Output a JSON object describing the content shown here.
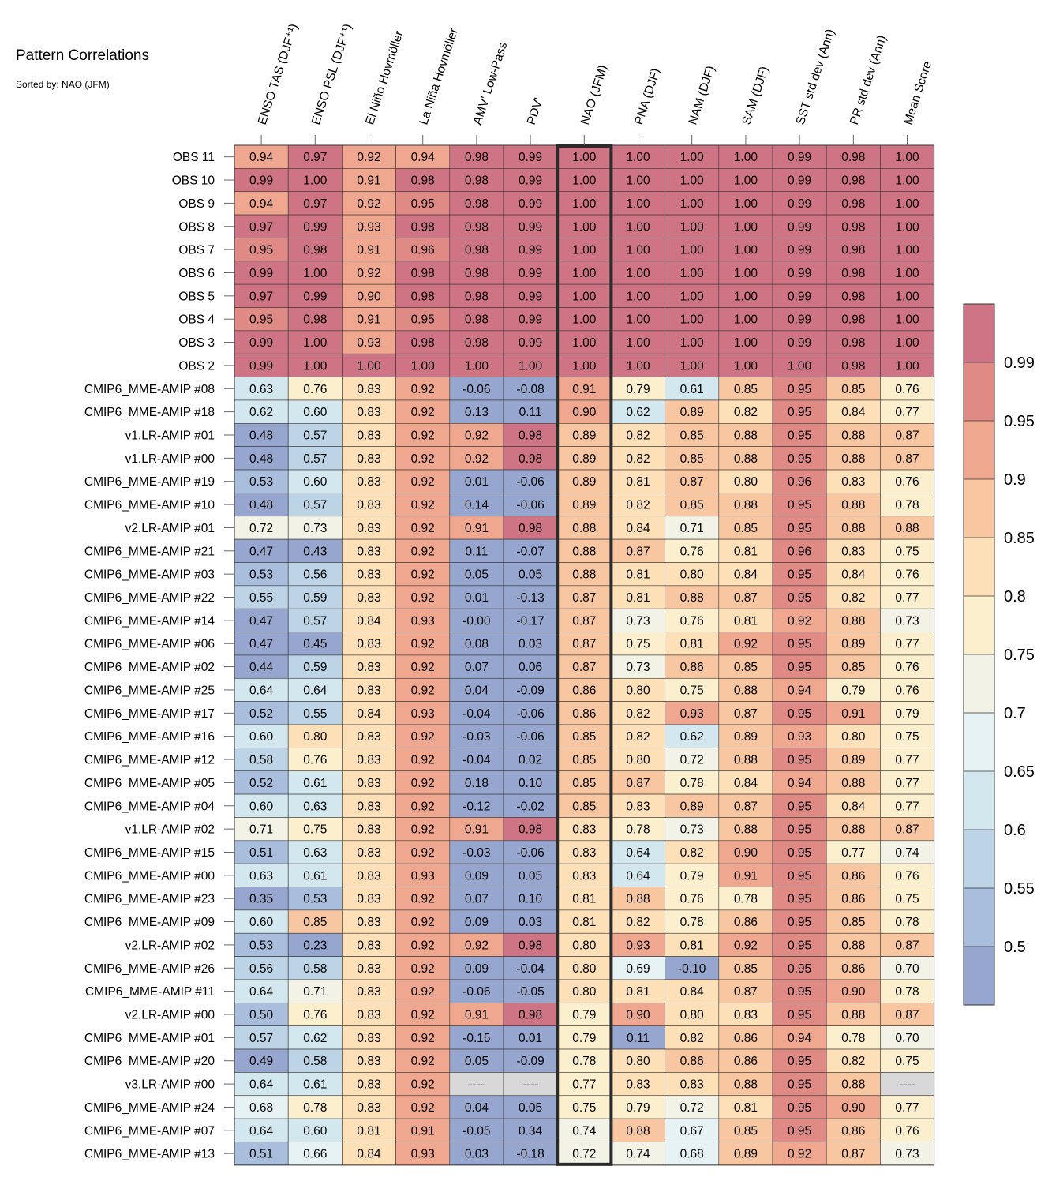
{
  "chart_data": {
    "type": "heatmap",
    "title": "Pattern Correlations",
    "subtitle": "Sorted by: NAO (JFM)",
    "highlight_column": "NAO (JFM)",
    "columns": [
      "ENSO TAS (DJF⁺¹)",
      "ENSO PSL (DJF⁺¹)",
      "El Niño Hovmöller",
      "La Niña Hovmöller",
      "AMV' Low-Pass",
      "PDV'",
      "NAO (JFM)",
      "PNA (DJF)",
      "NAM (DJF)",
      "SAM (DJF)",
      "SST std dev (Ann)",
      "PR std dev (Ann)",
      "Mean Score"
    ],
    "rows": [
      "OBS 11",
      "OBS 10",
      "OBS 9",
      "OBS 8",
      "OBS 7",
      "OBS 6",
      "OBS 5",
      "OBS 4",
      "OBS 3",
      "OBS 2",
      "CMIP6_MME-AMIP  #08",
      "CMIP6_MME-AMIP  #18",
      "v1.LR-AMIP  #01",
      "v1.LR-AMIP  #00",
      "CMIP6_MME-AMIP  #19",
      "CMIP6_MME-AMIP  #10",
      "v2.LR-AMIP  #01",
      "CMIP6_MME-AMIP  #21",
      "CMIP6_MME-AMIP  #03",
      "CMIP6_MME-AMIP  #22",
      "CMIP6_MME-AMIP  #14",
      "CMIP6_MME-AMIP  #06",
      "CMIP6_MME-AMIP  #02",
      "CMIP6_MME-AMIP  #25",
      "CMIP6_MME-AMIP  #17",
      "CMIP6_MME-AMIP  #16",
      "CMIP6_MME-AMIP  #12",
      "CMIP6_MME-AMIP  #05",
      "CMIP6_MME-AMIP  #04",
      "v1.LR-AMIP  #02",
      "CMIP6_MME-AMIP  #15",
      "CMIP6_MME-AMIP  #00",
      "CMIP6_MME-AMIP  #23",
      "CMIP6_MME-AMIP  #09",
      "v2.LR-AMIP  #02",
      "CMIP6_MME-AMIP  #26",
      "CMIP6_MME-AMIP  #11",
      "v2.LR-AMIP  #00",
      "CMIP6_MME-AMIP  #01",
      "CMIP6_MME-AMIP  #20",
      "v3.LR-AMIP  #00",
      "CMIP6_MME-AMIP  #24",
      "CMIP6_MME-AMIP  #07",
      "CMIP6_MME-AMIP  #13"
    ],
    "values": [
      [
        "0.94",
        "0.97",
        "0.92",
        "0.94",
        "0.98",
        "0.99",
        "1.00",
        "1.00",
        "1.00",
        "1.00",
        "0.99",
        "0.98",
        "1.00"
      ],
      [
        "0.99",
        "1.00",
        "0.91",
        "0.98",
        "0.98",
        "0.99",
        "1.00",
        "1.00",
        "1.00",
        "1.00",
        "0.99",
        "0.98",
        "1.00"
      ],
      [
        "0.94",
        "0.97",
        "0.92",
        "0.95",
        "0.98",
        "0.99",
        "1.00",
        "1.00",
        "1.00",
        "1.00",
        "0.99",
        "0.98",
        "1.00"
      ],
      [
        "0.97",
        "0.99",
        "0.93",
        "0.98",
        "0.98",
        "0.99",
        "1.00",
        "1.00",
        "1.00",
        "1.00",
        "0.99",
        "0.98",
        "1.00"
      ],
      [
        "0.95",
        "0.98",
        "0.91",
        "0.96",
        "0.98",
        "0.99",
        "1.00",
        "1.00",
        "1.00",
        "1.00",
        "0.99",
        "0.98",
        "1.00"
      ],
      [
        "0.99",
        "1.00",
        "0.92",
        "0.98",
        "0.98",
        "0.99",
        "1.00",
        "1.00",
        "1.00",
        "1.00",
        "0.99",
        "0.98",
        "1.00"
      ],
      [
        "0.97",
        "0.99",
        "0.90",
        "0.98",
        "0.98",
        "0.99",
        "1.00",
        "1.00",
        "1.00",
        "1.00",
        "0.99",
        "0.98",
        "1.00"
      ],
      [
        "0.95",
        "0.98",
        "0.91",
        "0.95",
        "0.98",
        "0.99",
        "1.00",
        "1.00",
        "1.00",
        "1.00",
        "0.99",
        "0.98",
        "1.00"
      ],
      [
        "0.99",
        "1.00",
        "0.93",
        "0.98",
        "0.98",
        "0.99",
        "1.00",
        "1.00",
        "1.00",
        "1.00",
        "0.99",
        "0.98",
        "1.00"
      ],
      [
        "0.99",
        "1.00",
        "1.00",
        "1.00",
        "1.00",
        "1.00",
        "1.00",
        "1.00",
        "1.00",
        "1.00",
        "1.00",
        "0.98",
        "1.00"
      ],
      [
        "0.63",
        "0.76",
        "0.83",
        "0.92",
        "-0.06",
        "-0.08",
        "0.91",
        "0.79",
        "0.61",
        "0.85",
        "0.95",
        "0.85",
        "0.76"
      ],
      [
        "0.62",
        "0.60",
        "0.83",
        "0.92",
        "0.13",
        "0.11",
        "0.90",
        "0.62",
        "0.89",
        "0.82",
        "0.95",
        "0.84",
        "0.77"
      ],
      [
        "0.48",
        "0.57",
        "0.83",
        "0.92",
        "0.92",
        "0.98",
        "0.89",
        "0.82",
        "0.85",
        "0.88",
        "0.95",
        "0.88",
        "0.87"
      ],
      [
        "0.48",
        "0.57",
        "0.83",
        "0.92",
        "0.92",
        "0.98",
        "0.89",
        "0.82",
        "0.85",
        "0.88",
        "0.95",
        "0.88",
        "0.87"
      ],
      [
        "0.53",
        "0.60",
        "0.83",
        "0.92",
        "0.01",
        "-0.06",
        "0.89",
        "0.81",
        "0.87",
        "0.80",
        "0.96",
        "0.83",
        "0.76"
      ],
      [
        "0.48",
        "0.57",
        "0.83",
        "0.92",
        "0.14",
        "-0.06",
        "0.89",
        "0.82",
        "0.85",
        "0.88",
        "0.95",
        "0.88",
        "0.78"
      ],
      [
        "0.72",
        "0.73",
        "0.83",
        "0.92",
        "0.91",
        "0.98",
        "0.88",
        "0.84",
        "0.71",
        "0.85",
        "0.95",
        "0.88",
        "0.88"
      ],
      [
        "0.47",
        "0.43",
        "0.83",
        "0.92",
        "0.11",
        "-0.07",
        "0.88",
        "0.87",
        "0.76",
        "0.81",
        "0.96",
        "0.83",
        "0.75"
      ],
      [
        "0.53",
        "0.56",
        "0.83",
        "0.92",
        "0.05",
        "0.05",
        "0.88",
        "0.81",
        "0.80",
        "0.84",
        "0.95",
        "0.84",
        "0.76"
      ],
      [
        "0.55",
        "0.59",
        "0.83",
        "0.92",
        "0.01",
        "-0.13",
        "0.87",
        "0.81",
        "0.88",
        "0.87",
        "0.95",
        "0.82",
        "0.77"
      ],
      [
        "0.47",
        "0.57",
        "0.84",
        "0.93",
        "-0.00",
        "-0.17",
        "0.87",
        "0.73",
        "0.76",
        "0.81",
        "0.92",
        "0.88",
        "0.73"
      ],
      [
        "0.47",
        "0.45",
        "0.83",
        "0.92",
        "0.08",
        "0.03",
        "0.87",
        "0.75",
        "0.81",
        "0.92",
        "0.95",
        "0.89",
        "0.77"
      ],
      [
        "0.44",
        "0.59",
        "0.83",
        "0.92",
        "0.07",
        "0.06",
        "0.87",
        "0.73",
        "0.86",
        "0.85",
        "0.95",
        "0.85",
        "0.76"
      ],
      [
        "0.64",
        "0.64",
        "0.83",
        "0.92",
        "0.04",
        "-0.09",
        "0.86",
        "0.80",
        "0.75",
        "0.88",
        "0.94",
        "0.79",
        "0.76"
      ],
      [
        "0.52",
        "0.55",
        "0.84",
        "0.93",
        "-0.04",
        "-0.06",
        "0.86",
        "0.82",
        "0.93",
        "0.87",
        "0.95",
        "0.91",
        "0.79"
      ],
      [
        "0.60",
        "0.80",
        "0.83",
        "0.92",
        "-0.03",
        "-0.06",
        "0.85",
        "0.82",
        "0.62",
        "0.89",
        "0.93",
        "0.80",
        "0.75"
      ],
      [
        "0.58",
        "0.76",
        "0.83",
        "0.92",
        "-0.04",
        "0.02",
        "0.85",
        "0.80",
        "0.72",
        "0.88",
        "0.95",
        "0.89",
        "0.77"
      ],
      [
        "0.52",
        "0.61",
        "0.83",
        "0.92",
        "0.18",
        "0.10",
        "0.85",
        "0.87",
        "0.78",
        "0.84",
        "0.94",
        "0.88",
        "0.77"
      ],
      [
        "0.60",
        "0.63",
        "0.83",
        "0.92",
        "-0.12",
        "-0.02",
        "0.85",
        "0.83",
        "0.89",
        "0.87",
        "0.95",
        "0.84",
        "0.77"
      ],
      [
        "0.71",
        "0.75",
        "0.83",
        "0.92",
        "0.91",
        "0.98",
        "0.83",
        "0.78",
        "0.73",
        "0.88",
        "0.95",
        "0.88",
        "0.87"
      ],
      [
        "0.51",
        "0.63",
        "0.83",
        "0.92",
        "-0.03",
        "-0.06",
        "0.83",
        "0.64",
        "0.82",
        "0.90",
        "0.95",
        "0.77",
        "0.74"
      ],
      [
        "0.63",
        "0.61",
        "0.83",
        "0.93",
        "0.09",
        "0.05",
        "0.83",
        "0.64",
        "0.79",
        "0.91",
        "0.95",
        "0.86",
        "0.76"
      ],
      [
        "0.35",
        "0.53",
        "0.83",
        "0.92",
        "0.07",
        "0.10",
        "0.81",
        "0.88",
        "0.76",
        "0.78",
        "0.95",
        "0.86",
        "0.75"
      ],
      [
        "0.60",
        "0.85",
        "0.83",
        "0.92",
        "0.09",
        "0.03",
        "0.81",
        "0.82",
        "0.78",
        "0.86",
        "0.95",
        "0.85",
        "0.78"
      ],
      [
        "0.53",
        "0.23",
        "0.83",
        "0.92",
        "0.92",
        "0.98",
        "0.80",
        "0.93",
        "0.81",
        "0.92",
        "0.95",
        "0.88",
        "0.87"
      ],
      [
        "0.56",
        "0.58",
        "0.83",
        "0.92",
        "0.09",
        "-0.04",
        "0.80",
        "0.69",
        "-0.10",
        "0.85",
        "0.95",
        "0.86",
        "0.70"
      ],
      [
        "0.64",
        "0.71",
        "0.83",
        "0.92",
        "-0.06",
        "-0.05",
        "0.80",
        "0.81",
        "0.84",
        "0.87",
        "0.95",
        "0.90",
        "0.78"
      ],
      [
        "0.50",
        "0.76",
        "0.83",
        "0.92",
        "0.91",
        "0.98",
        "0.79",
        "0.90",
        "0.80",
        "0.83",
        "0.95",
        "0.88",
        "0.87"
      ],
      [
        "0.57",
        "0.62",
        "0.83",
        "0.92",
        "-0.15",
        "0.01",
        "0.79",
        "0.11",
        "0.82",
        "0.86",
        "0.94",
        "0.78",
        "0.70"
      ],
      [
        "0.49",
        "0.58",
        "0.83",
        "0.92",
        "0.05",
        "-0.09",
        "0.78",
        "0.80",
        "0.86",
        "0.86",
        "0.95",
        "0.82",
        "0.75"
      ],
      [
        "0.64",
        "0.61",
        "0.83",
        "0.92",
        "----",
        "----",
        "0.77",
        "0.83",
        "0.83",
        "0.88",
        "0.95",
        "0.88",
        "----"
      ],
      [
        "0.68",
        "0.78",
        "0.83",
        "0.92",
        "0.04",
        "0.05",
        "0.75",
        "0.79",
        "0.72",
        "0.81",
        "0.95",
        "0.90",
        "0.77"
      ],
      [
        "0.64",
        "0.60",
        "0.81",
        "0.91",
        "-0.05",
        "0.34",
        "0.74",
        "0.88",
        "0.67",
        "0.85",
        "0.95",
        "0.86",
        "0.76"
      ],
      [
        "0.51",
        "0.66",
        "0.84",
        "0.93",
        "0.03",
        "-0.18",
        "0.72",
        "0.74",
        "0.68",
        "0.89",
        "0.92",
        "0.87",
        "0.73"
      ]
    ],
    "colorbar": {
      "tick_labels": [
        "0.99",
        "0.95",
        "0.9",
        "0.85",
        "0.8",
        "0.75",
        "0.7",
        "0.65",
        "0.6",
        "0.55",
        "0.5"
      ],
      "colors_bottom_to_top": [
        "#96a6cf",
        "#a9bedd",
        "#bcd4e6",
        "#d3e7ef",
        "#e7f2f5",
        "#f3f2e6",
        "#fcefcd",
        "#fde0b8",
        "#f8c6a0",
        "#f0a78f",
        "#e08a86",
        "#cf7485"
      ],
      "missing_color": "#d8d8d8"
    }
  }
}
